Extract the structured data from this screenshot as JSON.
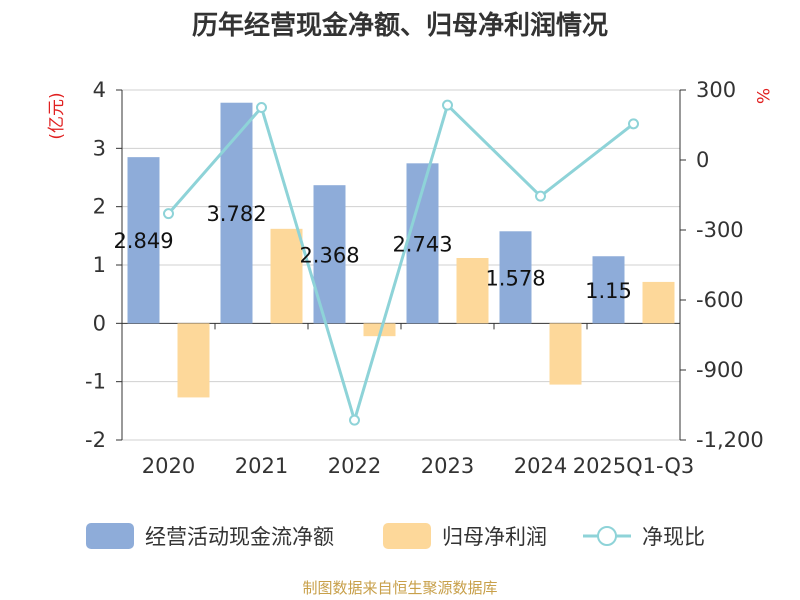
{
  "chart_data": {
    "type": "bar",
    "title": "历年经营现金净额、归母净利润情况",
    "categories": [
      "2020",
      "2021",
      "2022",
      "2023",
      "2024",
      "2025Q1-Q3"
    ],
    "y_left": {
      "label": "(亿元)",
      "range": [
        -2,
        4
      ],
      "ticks": [
        "4",
        "3",
        "2",
        "1",
        "0",
        "-1",
        "-2"
      ]
    },
    "y_right": {
      "label": "%",
      "range": [
        -1200,
        300
      ],
      "ticks": [
        "300",
        "0",
        "-300",
        "-600",
        "-900",
        "-1,200"
      ]
    },
    "series": [
      {
        "name": "经营活动现金流净额",
        "type": "bar",
        "axis": "left",
        "color": "#8eacd9",
        "values": [
          2.849,
          3.782,
          2.368,
          2.743,
          1.578,
          1.15
        ],
        "labels": [
          "2.849",
          "3.782",
          "2.368",
          "2.743",
          "1.578",
          "1.15"
        ]
      },
      {
        "name": "归母净利润",
        "type": "bar",
        "axis": "left",
        "color": "#fdd89a",
        "values": [
          -1.27,
          1.62,
          -0.22,
          1.12,
          -1.05,
          0.71
        ]
      },
      {
        "name": "净现比",
        "type": "line",
        "axis": "right",
        "color": "#8ed3d8",
        "values": [
          -230,
          225,
          -1115,
          235,
          -155,
          155
        ]
      }
    ],
    "legend_position": "bottom",
    "grid": true
  },
  "footer": {
    "source": "制图数据来自恒生聚源数据库"
  }
}
